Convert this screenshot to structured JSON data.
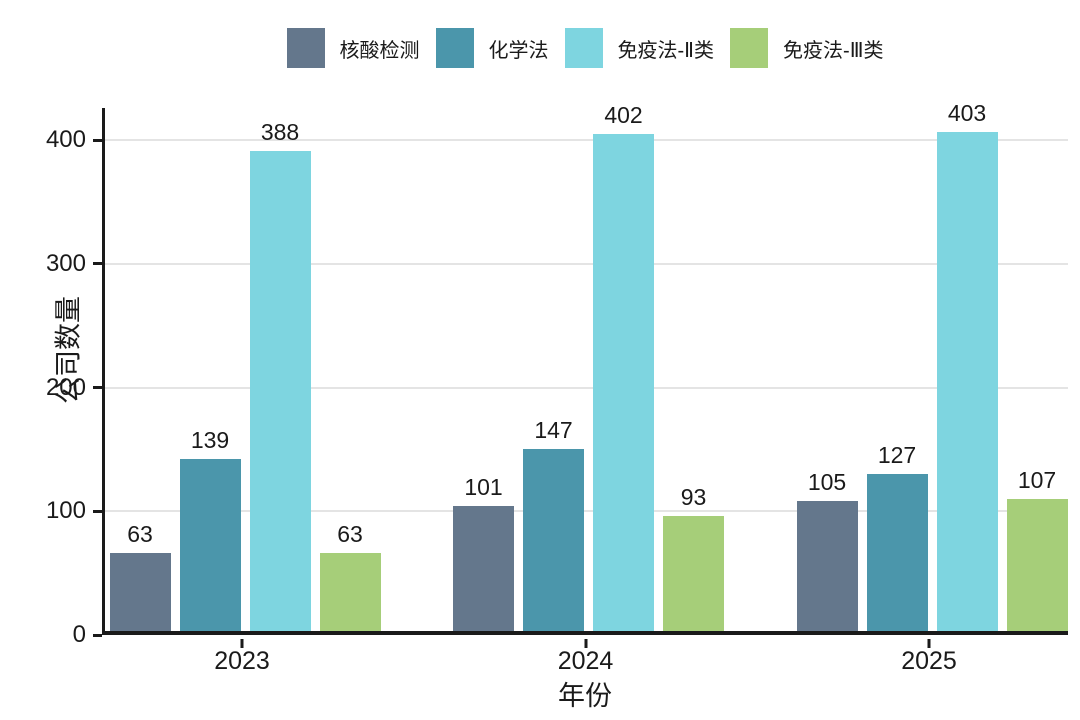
{
  "chart_data": {
    "type": "bar",
    "title": "",
    "xlabel": "年份",
    "ylabel": "公司数量",
    "categories": [
      "2023",
      "2024",
      "2025"
    ],
    "series": [
      {
        "name": "核酸检测",
        "color": "#64778c",
        "values": [
          63,
          101,
          105
        ]
      },
      {
        "name": "化学法",
        "color": "#4b96ab",
        "values": [
          139,
          147,
          127
        ]
      },
      {
        "name": "免疫法-Ⅱ类",
        "color": "#7ed5e0",
        "values": [
          388,
          402,
          403
        ]
      },
      {
        "name": "免疫法-Ⅲ类",
        "color": "#a6ce79",
        "values": [
          63,
          93,
          107
        ]
      }
    ],
    "yticks": [
      0,
      100,
      200,
      300,
      400
    ],
    "ylim": [
      0,
      426
    ],
    "grid": "horizontal",
    "legend_position": "top",
    "bar_labels": true
  },
  "colors": {
    "axis": "#1a1a1a",
    "gridline": "#e4e4e4",
    "text": "#1a1a1a",
    "background": "#ffffff"
  }
}
